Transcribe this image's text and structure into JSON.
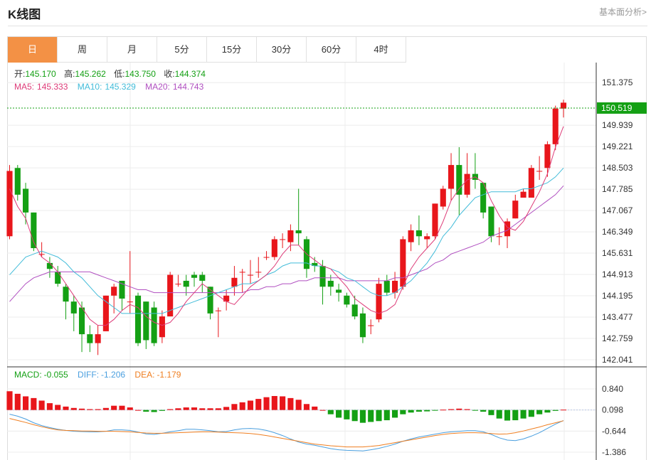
{
  "header": {
    "title": "K线图",
    "link": "基本面分析>"
  },
  "tabs": [
    {
      "label": "日",
      "active": true
    },
    {
      "label": "周",
      "active": false
    },
    {
      "label": "月",
      "active": false
    },
    {
      "label": "5分",
      "active": false
    },
    {
      "label": "15分",
      "active": false
    },
    {
      "label": "30分",
      "active": false
    },
    {
      "label": "60分",
      "active": false
    },
    {
      "label": "4时",
      "active": false
    }
  ],
  "colors": {
    "up": "#e8161b",
    "down": "#14a014",
    "ma5": "#dd3b78",
    "ma10": "#42bcd9",
    "ma20": "#b04fc0",
    "diff": "#4a9fdf",
    "dea": "#ef7e20",
    "accent": "#f39145",
    "price_tag": "#14a014"
  },
  "ohlc_info": {
    "open_label": "开:",
    "open": "145.170",
    "high_label": "高:",
    "high": "145.262",
    "low_label": "低:",
    "low": "143.750",
    "close_label": "收:",
    "close": "144.374"
  },
  "ma_info": {
    "ma5_label": "MA5:",
    "ma5": "145.333",
    "ma10_label": "MA10:",
    "ma10": "145.329",
    "ma20_label": "MA20:",
    "ma20": "144.743"
  },
  "macd_info": {
    "macd_label": "MACD:",
    "macd": "-0.055",
    "diff_label": "DIFF:",
    "diff": "-1.206",
    "dea_label": "DEA:",
    "dea": "-1.179"
  },
  "current_price": "150.519",
  "chart_data": [
    {
      "type": "candlestick",
      "y_ticks": [
        "151.375",
        "149.939",
        "149.221",
        "148.503",
        "147.785",
        "147.067",
        "146.349",
        "145.631",
        "144.913",
        "144.195",
        "143.477",
        "142.759",
        "142.041"
      ],
      "ylim": [
        142.04,
        151.38
      ],
      "candles": [
        [
          146.2,
          148.4,
          146.1,
          148.6
        ],
        [
          148.5,
          147.6,
          147.4,
          148.6
        ],
        [
          147.8,
          147.0,
          146.6,
          148.0
        ],
        [
          147.0,
          145.8,
          145.7,
          147.0
        ],
        [
          145.6,
          145.6,
          145.5,
          146.0
        ],
        [
          145.3,
          145.1,
          144.8,
          145.5
        ],
        [
          145.0,
          144.6,
          144.5,
          145.2
        ],
        [
          144.5,
          144.0,
          143.4,
          144.6
        ],
        [
          144.0,
          143.6,
          143.0,
          144.2
        ],
        [
          143.8,
          142.9,
          142.3,
          144.0
        ],
        [
          142.9,
          142.6,
          142.3,
          143.2
        ],
        [
          142.6,
          142.9,
          142.2,
          143.2
        ],
        [
          143.0,
          144.2,
          143.0,
          144.2
        ],
        [
          144.2,
          144.5,
          143.6,
          144.6
        ],
        [
          144.7,
          144.1,
          143.7,
          144.7
        ],
        [
          144.0,
          144.0,
          143.6,
          145.7
        ],
        [
          144.2,
          142.6,
          142.5,
          144.3
        ],
        [
          144.0,
          142.7,
          142.4,
          144.0
        ],
        [
          143.8,
          142.6,
          142.5,
          144.0
        ],
        [
          142.8,
          143.5,
          142.6,
          143.7
        ],
        [
          143.5,
          144.9,
          143.5,
          145.0
        ],
        [
          144.6,
          144.6,
          144.5,
          144.9
        ],
        [
          144.7,
          144.5,
          144.2,
          144.9
        ],
        [
          144.9,
          144.8,
          144.5,
          145.0
        ],
        [
          144.9,
          144.7,
          144.3,
          145.0
        ],
        [
          144.5,
          143.6,
          143.4,
          144.5
        ],
        [
          143.7,
          143.7,
          142.8,
          143.8
        ],
        [
          144.0,
          144.2,
          143.7,
          144.4
        ],
        [
          144.5,
          144.8,
          144.2,
          145.2
        ],
        [
          145.0,
          145.0,
          144.3,
          145.1
        ],
        [
          144.9,
          144.9,
          144.6,
          145.4
        ],
        [
          145.0,
          145.0,
          144.8,
          145.5
        ],
        [
          145.5,
          145.5,
          145.4,
          145.7
        ],
        [
          145.5,
          146.1,
          145.4,
          146.2
        ],
        [
          146.1,
          146.1,
          145.8,
          146.3
        ],
        [
          146.0,
          146.4,
          145.7,
          146.6
        ],
        [
          146.4,
          146.3,
          145.9,
          147.8
        ],
        [
          146.1,
          145.1,
          144.8,
          146.2
        ],
        [
          145.3,
          145.2,
          145.0,
          145.5
        ],
        [
          145.2,
          144.5,
          143.9,
          145.4
        ],
        [
          144.7,
          144.5,
          144.2,
          144.9
        ],
        [
          144.4,
          144.3,
          144.0,
          144.6
        ],
        [
          144.2,
          143.9,
          143.8,
          144.3
        ],
        [
          143.9,
          143.5,
          143.4,
          144.2
        ],
        [
          143.6,
          142.8,
          142.6,
          143.8
        ],
        [
          143.2,
          143.2,
          142.9,
          143.4
        ],
        [
          143.4,
          144.6,
          143.3,
          144.8
        ],
        [
          144.7,
          144.3,
          144.2,
          144.9
        ],
        [
          144.3,
          144.7,
          144.1,
          145.0
        ],
        [
          144.5,
          146.1,
          144.4,
          146.2
        ],
        [
          146.0,
          146.4,
          145.7,
          146.6
        ],
        [
          146.4,
          146.2,
          145.9,
          146.9
        ],
        [
          146.1,
          146.2,
          145.8,
          146.3
        ],
        [
          146.2,
          147.3,
          146.1,
          147.3
        ],
        [
          147.2,
          147.8,
          147.1,
          147.9
        ],
        [
          147.8,
          148.6,
          147.4,
          149.0
        ],
        [
          148.6,
          147.6,
          146.9,
          149.2
        ],
        [
          147.6,
          148.3,
          147.5,
          149.0
        ],
        [
          148.3,
          148.1,
          147.8,
          149.0
        ],
        [
          148.0,
          147.0,
          146.8,
          148.0
        ],
        [
          147.2,
          146.2,
          146.0,
          147.2
        ],
        [
          146.2,
          146.2,
          145.9,
          146.5
        ],
        [
          146.2,
          146.7,
          145.8,
          146.8
        ],
        [
          146.8,
          147.4,
          146.8,
          147.6
        ],
        [
          147.5,
          147.7,
          147.5,
          147.8
        ],
        [
          147.5,
          148.5,
          147.5,
          148.6
        ],
        [
          148.4,
          148.4,
          148.1,
          148.9
        ],
        [
          148.5,
          149.3,
          148.2,
          149.4
        ],
        [
          149.3,
          150.5,
          149.1,
          150.6
        ],
        [
          150.5,
          150.7,
          150.2,
          150.8
        ]
      ],
      "ma5": [
        147.8,
        147.2,
        146.8,
        146.0,
        145.5,
        145.3,
        145.0,
        144.6,
        144.2,
        143.8,
        143.4,
        143.2,
        143.2,
        143.4,
        143.7,
        143.9,
        143.8,
        143.5,
        143.3,
        143.2,
        143.3,
        143.6,
        144.0,
        144.3,
        144.6,
        144.4,
        144.2,
        144.0,
        143.9,
        144.2,
        144.5,
        144.7,
        144.9,
        145.2,
        145.6,
        145.9,
        145.9,
        145.6,
        145.4,
        145.2,
        145.1,
        144.8,
        144.5,
        144.1,
        143.9,
        143.7,
        143.6,
        143.7,
        143.9,
        144.5,
        145.1,
        145.5,
        145.8,
        146.1,
        146.7,
        147.4,
        147.8,
        148.1,
        148.2,
        148.0,
        147.4,
        146.9,
        146.5,
        146.4,
        146.7,
        147.2,
        147.7,
        148.3,
        149.2,
        149.9
      ],
      "ma10": [
        144.9,
        145.2,
        145.5,
        145.6,
        145.7,
        145.6,
        145.5,
        145.3,
        145.0,
        144.8,
        144.5,
        144.2,
        144.0,
        143.8,
        143.6,
        143.6,
        143.6,
        143.6,
        143.6,
        143.6,
        143.7,
        143.8,
        143.9,
        144.0,
        144.1,
        144.2,
        144.3,
        144.4,
        144.5,
        144.6,
        144.6,
        144.7,
        144.9,
        145.0,
        145.2,
        145.3,
        145.3,
        145.3,
        145.2,
        145.2,
        145.1,
        145.0,
        144.8,
        144.7,
        144.5,
        144.3,
        144.2,
        144.2,
        144.3,
        144.5,
        144.7,
        145.0,
        145.3,
        145.7,
        146.2,
        146.5,
        146.9,
        147.2,
        147.5,
        147.6,
        147.7,
        147.7,
        147.7,
        147.7,
        147.8,
        147.8,
        147.9,
        148.0,
        148.2,
        148.5
      ],
      "ma20": [
        144.0,
        144.3,
        144.6,
        144.8,
        144.9,
        145.0,
        145.0,
        145.0,
        145.0,
        145.0,
        145.0,
        144.9,
        144.8,
        144.7,
        144.6,
        144.5,
        144.4,
        144.4,
        144.3,
        144.3,
        144.3,
        144.3,
        144.3,
        144.3,
        144.3,
        144.3,
        144.3,
        144.3,
        144.3,
        144.3,
        144.4,
        144.4,
        144.5,
        144.5,
        144.6,
        144.6,
        144.7,
        144.7,
        144.8,
        144.8,
        144.8,
        144.8,
        144.7,
        144.7,
        144.7,
        144.7,
        144.7,
        144.7,
        144.8,
        144.8,
        144.9,
        145.0,
        145.1,
        145.3,
        145.4,
        145.6,
        145.7,
        145.8,
        145.9,
        146.0,
        146.2,
        146.3,
        146.4,
        146.6,
        146.8,
        147.0,
        147.2,
        147.4,
        147.6,
        147.9
      ]
    },
    {
      "type": "macd",
      "y_ticks": [
        "0.840",
        "0.098",
        "-0.644",
        "-1.386"
      ],
      "ylim": [
        -1.386,
        0.84
      ],
      "hist": [
        1.1,
        0.95,
        0.8,
        0.7,
        0.55,
        0.4,
        0.3,
        0.2,
        0.12,
        0.08,
        0.05,
        0.05,
        0.12,
        0.25,
        0.25,
        0.15,
        0.0,
        -0.1,
        -0.12,
        -0.05,
        0.05,
        0.1,
        0.15,
        0.15,
        0.1,
        0.1,
        0.1,
        0.18,
        0.35,
        0.45,
        0.55,
        0.65,
        0.75,
        0.82,
        0.8,
        0.7,
        0.6,
        0.35,
        0.2,
        0.0,
        -0.25,
        -0.45,
        -0.55,
        -0.65,
        -0.75,
        -0.7,
        -0.65,
        -0.6,
        -0.45,
        -0.25,
        -0.15,
        -0.1,
        -0.08,
        -0.02,
        0.02,
        0.05,
        0.08,
        0.05,
        -0.02,
        -0.1,
        -0.3,
        -0.5,
        -0.62,
        -0.6,
        -0.5,
        -0.4,
        -0.25,
        -0.15,
        -0.05,
        0.02
      ],
      "diff": [
        -0.05,
        -0.12,
        -0.22,
        -0.35,
        -0.45,
        -0.52,
        -0.58,
        -0.62,
        -0.65,
        -0.66,
        -0.67,
        -0.67,
        -0.65,
        -0.6,
        -0.6,
        -0.62,
        -0.68,
        -0.74,
        -0.76,
        -0.72,
        -0.67,
        -0.63,
        -0.58,
        -0.58,
        -0.6,
        -0.63,
        -0.67,
        -0.66,
        -0.6,
        -0.56,
        -0.55,
        -0.57,
        -0.62,
        -0.7,
        -0.8,
        -0.92,
        -1.03,
        -1.1,
        -1.14,
        -1.2,
        -1.26,
        -1.3,
        -1.32,
        -1.33,
        -1.34,
        -1.3,
        -1.25,
        -1.18,
        -1.1,
        -1.0,
        -0.92,
        -0.85,
        -0.8,
        -0.75,
        -0.7,
        -0.67,
        -0.65,
        -0.63,
        -0.63,
        -0.67,
        -0.76,
        -0.88,
        -0.96,
        -0.98,
        -0.92,
        -0.82,
        -0.7,
        -0.55,
        -0.4,
        -0.27
      ],
      "dea": [
        -0.2,
        -0.27,
        -0.34,
        -0.42,
        -0.49,
        -0.55,
        -0.6,
        -0.62,
        -0.63,
        -0.64,
        -0.64,
        -0.65,
        -0.65,
        -0.65,
        -0.66,
        -0.67,
        -0.69,
        -0.71,
        -0.72,
        -0.72,
        -0.71,
        -0.7,
        -0.69,
        -0.68,
        -0.67,
        -0.67,
        -0.68,
        -0.69,
        -0.7,
        -0.71,
        -0.73,
        -0.76,
        -0.8,
        -0.85,
        -0.9,
        -0.95,
        -1.0,
        -1.05,
        -1.1,
        -1.13,
        -1.16,
        -1.18,
        -1.2,
        -1.2,
        -1.2,
        -1.18,
        -1.15,
        -1.1,
        -1.05,
        -1.0,
        -0.95,
        -0.9,
        -0.85,
        -0.8,
        -0.76,
        -0.73,
        -0.71,
        -0.7,
        -0.7,
        -0.71,
        -0.73,
        -0.75,
        -0.74,
        -0.7,
        -0.64,
        -0.57,
        -0.5,
        -0.42,
        -0.35,
        -0.28
      ]
    }
  ]
}
